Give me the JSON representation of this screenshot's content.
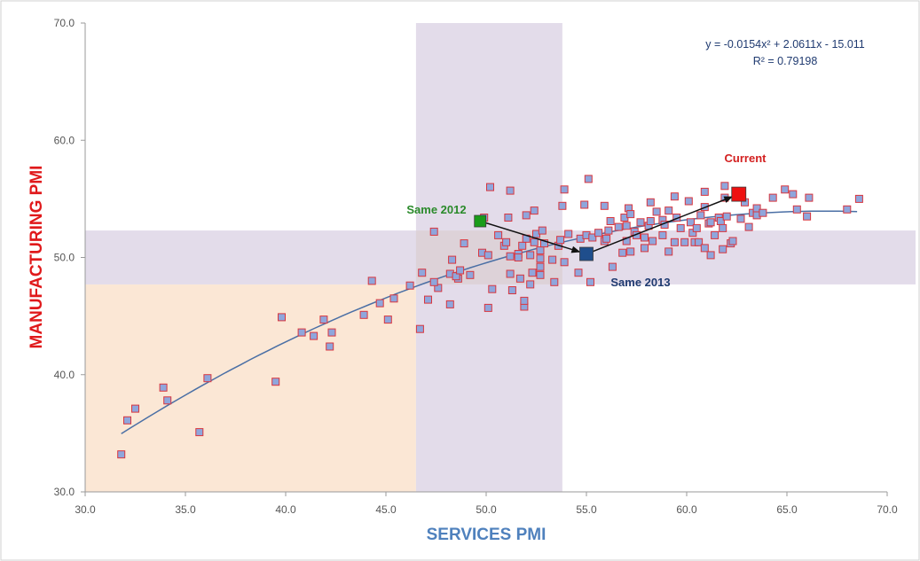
{
  "chart_data": {
    "type": "scatter",
    "xlabel": "SERVICES PMI",
    "ylabel": "MANUFACTURING PMI",
    "xlim": [
      30,
      70
    ],
    "ylim": [
      30,
      70
    ],
    "x_ticks": [
      "30.0",
      "35.0",
      "40.0",
      "45.0",
      "50.0",
      "55.0",
      "60.0",
      "65.0",
      "70.0"
    ],
    "y_ticks": [
      "30.0",
      "40.0",
      "50.0",
      "60.0",
      "70.0"
    ],
    "grid": false,
    "colors": {
      "xlabel": "#4f81bd",
      "ylabel": "#e0191b",
      "point_fill": "#8fa6dc",
      "point_stroke": "#d9363e",
      "trend": "#4a6fa5",
      "band_purple": "#e3dcea",
      "band_orange": "#fbe7d5",
      "overlap": "#ddd2d8",
      "current": "#ee1111",
      "same2012": "#1a9c1a",
      "same2013": "#1f4e8c",
      "current_label": "#d32020",
      "same2012_label": "#2a8a2a",
      "same2013_label": "#1f3a70"
    },
    "shaded_regions": {
      "x_band": [
        46.5,
        53.8
      ],
      "y_band": [
        47.7,
        52.3
      ],
      "low_zone": {
        "x": [
          30,
          46.5
        ],
        "y": [
          30,
          47.7
        ]
      }
    },
    "trendline": {
      "a": -0.0154,
      "b": 2.0611,
      "c": -15.011,
      "x_range": [
        31.8,
        68.5
      ],
      "equation": "y = -0.0154x² + 2.0611x - 15.011",
      "r2": "R² = 0.79198"
    },
    "points": [
      [
        31.8,
        33.2
      ],
      [
        32.1,
        36.1
      ],
      [
        32.5,
        37.1
      ],
      [
        33.9,
        38.9
      ],
      [
        34.1,
        37.8
      ],
      [
        35.7,
        35.1
      ],
      [
        36.1,
        39.7
      ],
      [
        39.5,
        39.4
      ],
      [
        39.8,
        44.9
      ],
      [
        40.8,
        43.6
      ],
      [
        41.4,
        43.3
      ],
      [
        41.9,
        44.7
      ],
      [
        42.2,
        42.4
      ],
      [
        42.3,
        43.6
      ],
      [
        43.9,
        45.1
      ],
      [
        44.3,
        48.0
      ],
      [
        44.7,
        46.1
      ],
      [
        45.1,
        44.7
      ],
      [
        45.4,
        46.5
      ],
      [
        46.2,
        47.6
      ],
      [
        46.7,
        43.9
      ],
      [
        46.8,
        48.7
      ],
      [
        47.1,
        46.4
      ],
      [
        47.4,
        52.2
      ],
      [
        47.6,
        47.4
      ],
      [
        47.4,
        47.9
      ],
      [
        48.2,
        46.0
      ],
      [
        48.3,
        49.8
      ],
      [
        48.2,
        48.6
      ],
      [
        48.6,
        48.2
      ],
      [
        48.5,
        48.4
      ],
      [
        48.7,
        48.9
      ],
      [
        48.9,
        51.2
      ],
      [
        49.2,
        48.5
      ],
      [
        49.8,
        50.4
      ],
      [
        49.9,
        53.4
      ],
      [
        50.1,
        45.7
      ],
      [
        50.1,
        50.2
      ],
      [
        50.2,
        56.0
      ],
      [
        50.3,
        47.3
      ],
      [
        50.6,
        51.9
      ],
      [
        50.9,
        51.0
      ],
      [
        51.0,
        51.3
      ],
      [
        51.1,
        53.4
      ],
      [
        51.2,
        55.7
      ],
      [
        51.2,
        50.1
      ],
      [
        51.2,
        48.6
      ],
      [
        51.3,
        47.2
      ],
      [
        51.6,
        50.3
      ],
      [
        51.6,
        50.0
      ],
      [
        51.7,
        48.2
      ],
      [
        51.8,
        51.0
      ],
      [
        51.9,
        45.8
      ],
      [
        52.0,
        53.6
      ],
      [
        51.9,
        46.3
      ],
      [
        52.0,
        51.6
      ],
      [
        52.2,
        50.2
      ],
      [
        52.3,
        48.7
      ],
      [
        52.2,
        47.7
      ],
      [
        52.4,
        54.0
      ],
      [
        52.4,
        51.3
      ],
      [
        52.5,
        52.0
      ],
      [
        52.7,
        50.6
      ],
      [
        52.7,
        49.9
      ],
      [
        52.7,
        49.2
      ],
      [
        52.7,
        48.5
      ],
      [
        52.8,
        52.3
      ],
      [
        52.9,
        51.2
      ],
      [
        53.3,
        49.8
      ],
      [
        53.4,
        47.9
      ],
      [
        53.6,
        51.0
      ],
      [
        53.7,
        51.5
      ],
      [
        53.8,
        54.4
      ],
      [
        53.9,
        55.8
      ],
      [
        53.9,
        49.6
      ],
      [
        54.1,
        52.0
      ],
      [
        54.6,
        48.7
      ],
      [
        54.7,
        51.6
      ],
      [
        54.9,
        54.5
      ],
      [
        55.0,
        51.9
      ],
      [
        55.1,
        56.7
      ],
      [
        55.2,
        47.9
      ],
      [
        55.3,
        51.7
      ],
      [
        55.6,
        52.1
      ],
      [
        55.9,
        51.4
      ],
      [
        55.9,
        54.4
      ],
      [
        56.0,
        51.6
      ],
      [
        56.1,
        52.3
      ],
      [
        56.2,
        53.1
      ],
      [
        56.3,
        49.2
      ],
      [
        56.6,
        52.6
      ],
      [
        56.8,
        50.4
      ],
      [
        56.9,
        53.4
      ],
      [
        57.0,
        52.7
      ],
      [
        57.0,
        51.4
      ],
      [
        57.1,
        54.2
      ],
      [
        57.2,
        50.5
      ],
      [
        57.2,
        53.7
      ],
      [
        57.4,
        52.2
      ],
      [
        57.5,
        51.9
      ],
      [
        57.7,
        53.0
      ],
      [
        57.9,
        51.7
      ],
      [
        57.9,
        50.8
      ],
      [
        58.1,
        52.7
      ],
      [
        58.2,
        53.1
      ],
      [
        58.2,
        54.7
      ],
      [
        58.3,
        51.4
      ],
      [
        58.5,
        53.9
      ],
      [
        58.8,
        53.2
      ],
      [
        58.8,
        51.9
      ],
      [
        58.9,
        52.8
      ],
      [
        59.1,
        54.0
      ],
      [
        59.1,
        50.5
      ],
      [
        59.4,
        55.2
      ],
      [
        59.4,
        51.3
      ],
      [
        59.5,
        53.4
      ],
      [
        59.7,
        52.5
      ],
      [
        59.9,
        51.3
      ],
      [
        60.1,
        54.8
      ],
      [
        60.2,
        53.0
      ],
      [
        60.3,
        52.1
      ],
      [
        60.4,
        51.3
      ],
      [
        60.5,
        52.5
      ],
      [
        60.6,
        51.3
      ],
      [
        60.7,
        53.6
      ],
      [
        60.9,
        50.8
      ],
      [
        60.9,
        55.6
      ],
      [
        60.9,
        54.3
      ],
      [
        61.1,
        52.9
      ],
      [
        61.2,
        53.0
      ],
      [
        61.2,
        50.2
      ],
      [
        61.4,
        51.9
      ],
      [
        61.6,
        53.4
      ],
      [
        61.7,
        53.1
      ],
      [
        61.8,
        52.5
      ],
      [
        61.8,
        50.7
      ],
      [
        61.9,
        55.1
      ],
      [
        61.9,
        56.1
      ],
      [
        62.0,
        53.5
      ],
      [
        62.2,
        51.2
      ],
      [
        62.3,
        51.4
      ],
      [
        62.7,
        53.3
      ],
      [
        62.9,
        54.7
      ],
      [
        63.1,
        52.6
      ],
      [
        63.3,
        53.8
      ],
      [
        63.5,
        53.6
      ],
      [
        63.5,
        54.2
      ],
      [
        63.8,
        53.8
      ],
      [
        64.3,
        55.1
      ],
      [
        64.9,
        55.8
      ],
      [
        65.3,
        55.4
      ],
      [
        65.5,
        54.1
      ],
      [
        66.0,
        53.5
      ],
      [
        66.1,
        55.1
      ],
      [
        68.0,
        54.1
      ],
      [
        68.6,
        55.0
      ]
    ],
    "annotations": {
      "current": {
        "label": "Current",
        "x": 62.6,
        "y": 55.4
      },
      "same2012": {
        "label": "Same 2012",
        "x": 49.7,
        "y": 53.1
      },
      "same2013": {
        "label": "Same 2013",
        "x": 55.0,
        "y": 50.3
      }
    }
  }
}
